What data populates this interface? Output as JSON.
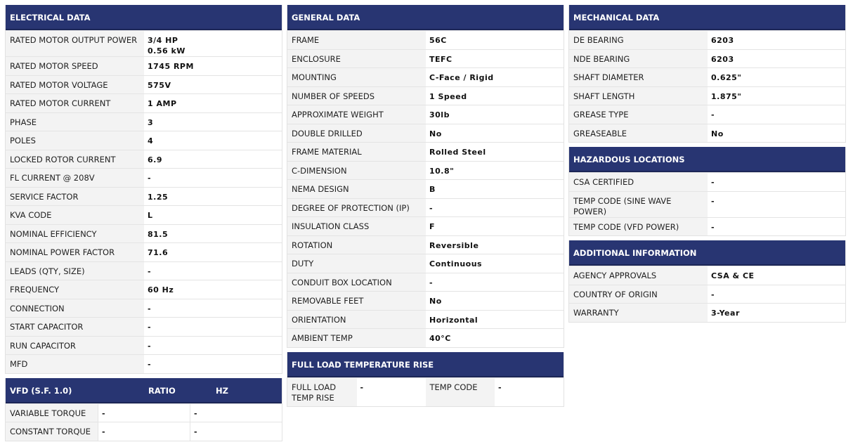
{
  "electrical": {
    "title": "ELECTRICAL DATA",
    "rows": [
      [
        "RATED MOTOR OUTPUT POWER",
        "3/4 HP\n0.56 kW"
      ],
      [
        "RATED MOTOR SPEED",
        "1745 RPM"
      ],
      [
        "RATED MOTOR VOLTAGE",
        "575V"
      ],
      [
        "RATED MOTOR CURRENT",
        "1 AMP"
      ],
      [
        "PHASE",
        "3"
      ],
      [
        "POLES",
        "4"
      ],
      [
        "LOCKED ROTOR CURRENT",
        "6.9"
      ],
      [
        "FL CURRENT @ 208V",
        "-"
      ],
      [
        "SERVICE FACTOR",
        "1.25"
      ],
      [
        "KVA CODE",
        "L"
      ],
      [
        "NOMINAL EFFICIENCY",
        "81.5"
      ],
      [
        "NOMINAL POWER FACTOR",
        "71.6"
      ],
      [
        "LEADS (QTY, SIZE)",
        "-"
      ],
      [
        "FREQUENCY",
        "60 Hz"
      ],
      [
        "CONNECTION",
        "-"
      ],
      [
        "START CAPACITOR",
        "-"
      ],
      [
        "RUN CAPACITOR",
        "-"
      ],
      [
        "MFD",
        "-"
      ]
    ]
  },
  "vfd": {
    "title": "VFD (S.F. 1.0)",
    "ratio": "RATIO",
    "hz": "HZ",
    "rows": [
      [
        "VARIABLE TORQUE",
        "-",
        "-"
      ],
      [
        "CONSTANT TORQUE",
        "-",
        "-"
      ]
    ]
  },
  "general": {
    "title": "GENERAL DATA",
    "rows": [
      [
        "FRAME",
        "56C"
      ],
      [
        "ENCLOSURE",
        "TEFC"
      ],
      [
        "MOUNTING",
        "C-Face / Rigid"
      ],
      [
        "NUMBER OF SPEEDS",
        "1 Speed"
      ],
      [
        "APPROXIMATE WEIGHT",
        "30lb"
      ],
      [
        "DOUBLE DRILLED",
        "No"
      ],
      [
        "FRAME MATERIAL",
        "Rolled Steel"
      ],
      [
        "C-DIMENSION",
        "10.8\""
      ],
      [
        "NEMA DESIGN",
        "B"
      ],
      [
        "DEGREE OF PROTECTION (IP)",
        "-"
      ],
      [
        "INSULATION CLASS",
        "F"
      ],
      [
        "ROTATION",
        "Reversible"
      ],
      [
        "DUTY",
        "Continuous"
      ],
      [
        "CONDUIT BOX LOCATION",
        "-"
      ],
      [
        "REMOVABLE FEET",
        "No"
      ],
      [
        "ORIENTATION",
        "Horizontal"
      ],
      [
        "AMBIENT TEMP",
        "40°C"
      ]
    ]
  },
  "full_load": {
    "title": "FULL LOAD TEMPERATURE RISE",
    "label1": "FULL LOAD\nTEMP RISE",
    "value1": "-",
    "label2": "TEMP CODE",
    "value2": "-"
  },
  "mechanical": {
    "title": "MECHANICAL DATA",
    "rows": [
      [
        "DE BEARING",
        "6203"
      ],
      [
        "NDE BEARING",
        "6203"
      ],
      [
        "SHAFT DIAMETER",
        "0.625\""
      ],
      [
        "SHAFT LENGTH",
        "1.875\""
      ],
      [
        "GREASE TYPE",
        "-"
      ],
      [
        "GREASEABLE",
        "No"
      ]
    ]
  },
  "hazardous": {
    "title": "HAZARDOUS LOCATIONS",
    "rows": [
      [
        "CSA CERTIFIED",
        "-"
      ],
      [
        "TEMP CODE (SINE WAVE POWER)",
        "-"
      ],
      [
        "TEMP CODE (VFD POWER)",
        "-"
      ]
    ]
  },
  "additional": {
    "title": "ADDITIONAL INFORMATION",
    "rows": [
      [
        "AGENCY APPROVALS",
        "CSA & CE"
      ],
      [
        "COUNTRY OF ORIGIN",
        "-"
      ],
      [
        "WARRANTY",
        "3-Year"
      ]
    ]
  },
  "colors": {
    "header": "#283572",
    "label_bg": "#f3f3f3"
  }
}
